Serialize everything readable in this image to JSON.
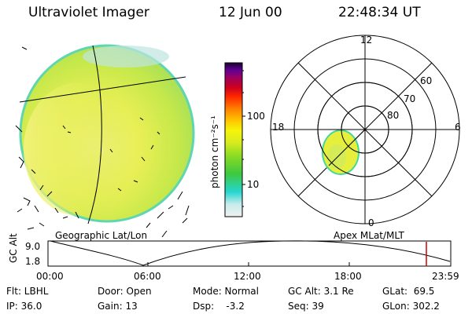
{
  "header": {
    "instrument": "Ultraviolet Imager",
    "date": "12 Jun 00",
    "time": "22:48:34 UT"
  },
  "colorbar": {
    "unit_label": "photon cm⁻²s⁻¹",
    "tick_100": "100",
    "tick_10": "10",
    "scale": "log",
    "colors": [
      "#e6e6e6",
      "#9fe8e8",
      "#26d6d0",
      "#3ec83e",
      "#7edc23",
      "#c8e623",
      "#f5f50a",
      "#ffc800",
      "#ff8200",
      "#ff2800",
      "#cd001e",
      "#a0005a",
      "#640096",
      "#28003c"
    ]
  },
  "images": {
    "left_label": "Geographic Lat/Lon",
    "right_label": "Apex MLat/MLT",
    "polar": {
      "mlt_12": "12",
      "mlt_18": "18",
      "mlt_6": "6",
      "mlt_0": "0",
      "lat_60": "60",
      "lat_70": "70",
      "lat_80": "80"
    }
  },
  "altitude_plot": {
    "ylabel": "GC Alt",
    "y_top": "9.0",
    "y_bottom": "1.8",
    "x_ticks": [
      "00:00",
      "06:00",
      "12:00",
      "18:00",
      "23:59"
    ],
    "marker_color": "#cc0000"
  },
  "info": {
    "flt": "Flt: LBHL",
    "ip": "IP: 36.0",
    "door": "Door: Open",
    "gain": "Gain: 13",
    "mode": "Mode: Normal",
    "dsp": "Dsp:    -3.2",
    "gc_alt": "GC Alt: 3.1 Re",
    "seq": "Seq: 39",
    "glat": "GLat:  69.5",
    "glon": "GLon: 302.2"
  }
}
